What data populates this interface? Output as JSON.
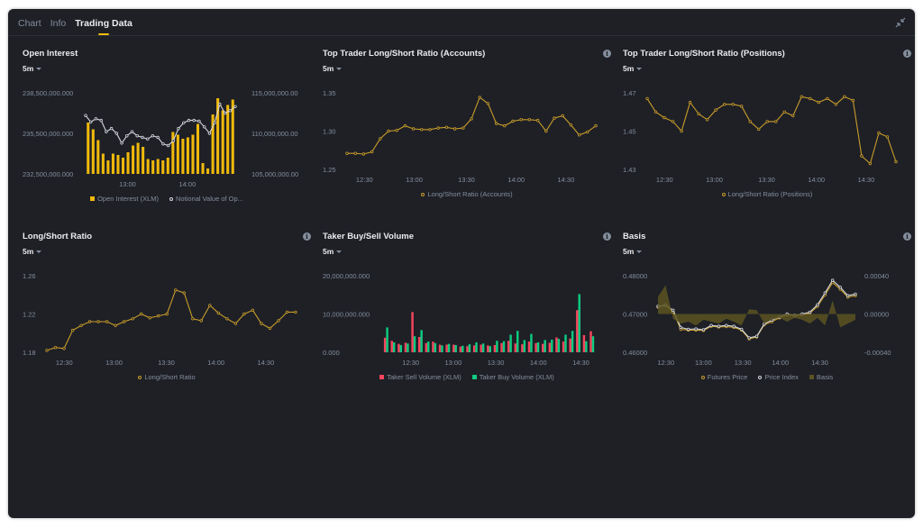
{
  "tabs": [
    "Chart",
    "Info",
    "Trading Data"
  ],
  "active_tab": "Trading Data",
  "colors": {
    "accent": "#f0b90b",
    "line_gold": "#c99c29",
    "line_white": "#d5d8de",
    "sell_red": "#f6465d",
    "buy_green": "#0ecb81",
    "basis_fill": "#5c5322",
    "axis_text": "#848e9c"
  },
  "panels": [
    {
      "id": "open-interest",
      "title": "Open Interest",
      "interval": "5m",
      "info": false,
      "chart_data": {
        "type": "bar",
        "title": "Open Interest",
        "x_ticks": [
          "13:00",
          "14:00"
        ],
        "y_ticks_left": [
          "238,500,000.000",
          "235,500,000.000",
          "232,500,000.000"
        ],
        "y_ticks_right": [
          "115,000,000.00",
          "110,000,000.00",
          "105,000,000.00"
        ],
        "ylim_left": [
          232500000,
          238500000
        ],
        "ylim_right": [
          105000000,
          115000000
        ],
        "series": [
          {
            "name": "Open Interest (XLM)",
            "kind": "bar",
            "axis": "left",
            "values": [
              236300000,
              235800000,
              235000000,
              234000000,
              233500000,
              234000000,
              233900000,
              233700000,
              234100000,
              234600000,
              234800000,
              234500000,
              233600000,
              233500000,
              233600000,
              233500000,
              233700000,
              235600000,
              235400000,
              235100000,
              235200000,
              235400000,
              236200000,
              233300000,
              232900000,
              236900000,
              238100000,
              237200000,
              237600000,
              238000000
            ]
          },
          {
            "name": "Notional Value of Op...",
            "kind": "line",
            "axis": "right",
            "values": [
              112200000,
              111400000,
              111800000,
              111600000,
              110200000,
              110600000,
              110000000,
              108800000,
              109700000,
              110200000,
              109700000,
              109500000,
              109300000,
              109700000,
              109500000,
              108700000,
              108500000,
              109100000,
              110600000,
              111300000,
              111600000,
              111600000,
              111500000,
              110800000,
              110000000,
              111300000,
              113600000,
              112500000,
              112800000,
              113300000
            ]
          }
        ]
      }
    },
    {
      "id": "top-trader-accounts",
      "title": "Top Trader Long/Short Ratio (Accounts)",
      "interval": "5m",
      "info": true,
      "chart_data": {
        "type": "line",
        "title": "Top Trader Long/Short Ratio (Accounts)",
        "x_ticks": [
          "12:30",
          "13:00",
          "13:30",
          "14:00",
          "14:30"
        ],
        "y_ticks": [
          "1.35",
          "1.30",
          "1.25"
        ],
        "ylim": [
          1.25,
          1.35
        ],
        "series": [
          {
            "name": "Long/Short Ratio (Accounts)",
            "values": [
              1.271,
              1.271,
              1.27,
              1.273,
              1.29,
              1.3,
              1.301,
              1.307,
              1.303,
              1.302,
              1.302,
              1.304,
              1.305,
              1.303,
              1.304,
              1.316,
              1.344,
              1.336,
              1.31,
              1.307,
              1.313,
              1.315,
              1.315,
              1.314,
              1.3,
              1.317,
              1.32,
              1.308,
              1.295,
              1.299,
              1.307
            ]
          }
        ]
      }
    },
    {
      "id": "top-trader-positions",
      "title": "Top Trader Long/Short Ratio (Positions)",
      "interval": "5m",
      "info": true,
      "chart_data": {
        "type": "line",
        "title": "Top Trader Long/Short Ratio (Positions)",
        "x_ticks": [
          "12:30",
          "13:00",
          "13:30",
          "14:00",
          "14:30"
        ],
        "y_ticks": [
          "1.47",
          "1.45",
          "1.43"
        ],
        "ylim": [
          1.43,
          1.47
        ],
        "series": [
          {
            "name": "Long/Short Ratio (Positions)",
            "values": [
              1.467,
              1.46,
              1.457,
              1.455,
              1.45,
              1.465,
              1.459,
              1.456,
              1.461,
              1.464,
              1.464,
              1.463,
              1.455,
              1.451,
              1.455,
              1.455,
              1.46,
              1.458,
              1.468,
              1.467,
              1.465,
              1.467,
              1.464,
              1.468,
              1.466,
              1.437,
              1.433,
              1.449,
              1.447,
              1.434
            ]
          }
        ]
      }
    },
    {
      "id": "long-short-ratio",
      "title": "Long/Short Ratio",
      "interval": "5m",
      "info": true,
      "chart_data": {
        "type": "line",
        "title": "Long/Short Ratio",
        "x_ticks": [
          "12:30",
          "13:00",
          "13:30",
          "14:00",
          "14:30"
        ],
        "y_ticks": [
          "1.26",
          "1.22",
          "1.18"
        ],
        "ylim": [
          1.18,
          1.26
        ],
        "series": [
          {
            "name": "Long/Short Ratio",
            "values": [
              1.182,
              1.185,
              1.184,
              1.203,
              1.208,
              1.212,
              1.212,
              1.212,
              1.208,
              1.212,
              1.215,
              1.22,
              1.216,
              1.218,
              1.22,
              1.245,
              1.242,
              1.215,
              1.213,
              1.229,
              1.221,
              1.215,
              1.21,
              1.22,
              1.224,
              1.21,
              1.205,
              1.213,
              1.222,
              1.222
            ]
          }
        ]
      }
    },
    {
      "id": "taker-volume",
      "title": "Taker Buy/Sell Volume",
      "interval": "5m",
      "info": true,
      "chart_data": {
        "type": "bar",
        "title": "Taker Buy/Sell Volume",
        "x_ticks": [
          "12:30",
          "13:00",
          "13:30",
          "14:00",
          "14:30"
        ],
        "y_ticks": [
          "20,000,000.000",
          "10,000,000.000",
          "0.000"
        ],
        "ylim": [
          0,
          20000000
        ],
        "series": [
          {
            "name": "Taker Sell Volume (XLM)",
            "values": [
              3800000,
              3000000,
              2200000,
              2500000,
              10500000,
              4000000,
              2400000,
              2800000,
              2000000,
              2000000,
              2000000,
              1500000,
              1600000,
              1800000,
              2000000,
              1800000,
              1900000,
              2400000,
              3000000,
              2300000,
              2100000,
              2800000,
              2400000,
              2200000,
              2500000,
              3900000,
              2800000,
              3600000,
              11000000,
              4500000,
              5500000
            ]
          },
          {
            "name": "Taker Buy Volume (XLM)",
            "values": [
              6500000,
              2600000,
              1900000,
              2300000,
              4200000,
              5800000,
              2800000,
              2400000,
              1800000,
              2200000,
              1900000,
              1700000,
              2100000,
              2600000,
              2300000,
              1600000,
              3000000,
              2900000,
              4600000,
              5600000,
              3200000,
              4800000,
              2600000,
              3200000,
              3300000,
              3500000,
              4600000,
              5600000,
              15200000,
              2900000,
              4200000
            ]
          }
        ]
      }
    },
    {
      "id": "basis",
      "title": "Basis",
      "interval": "5m",
      "info": true,
      "chart_data": {
        "type": "line",
        "title": "Basis",
        "x_ticks": [
          "12:30",
          "13:00",
          "13:30",
          "14:00",
          "14:30"
        ],
        "y_ticks_left": [
          "0.48000",
          "0.47000",
          "0.46000"
        ],
        "y_ticks_right": [
          "0.00040",
          "0.00000",
          "-0.00040"
        ],
        "ylim_left": [
          0.46,
          0.48
        ],
        "ylim_right": [
          -0.0004,
          0.0004
        ],
        "series": [
          {
            "name": "Futures Price",
            "kind": "line",
            "axis": "left",
            "values": [
              0.4718,
              0.4722,
              0.4705,
              0.466,
              0.4658,
              0.4658,
              0.4657,
              0.4668,
              0.4666,
              0.4667,
              0.4665,
              0.4658,
              0.4635,
              0.464,
              0.4672,
              0.468,
              0.469,
              0.4698,
              0.4695,
              0.4698,
              0.4702,
              0.472,
              0.475,
              0.4782,
              0.4765,
              0.4744,
              0.4748
            ]
          },
          {
            "name": "Price Index",
            "kind": "line",
            "axis": "left",
            "values": [
              0.472,
              0.4724,
              0.471,
              0.4665,
              0.466,
              0.4661,
              0.4659,
              0.467,
              0.4668,
              0.467,
              0.4668,
              0.466,
              0.4638,
              0.4642,
              0.4674,
              0.4684,
              0.4692,
              0.47,
              0.4697,
              0.47,
              0.4705,
              0.4724,
              0.4755,
              0.4788,
              0.477,
              0.4748,
              0.4752
            ]
          },
          {
            "name": "Basis",
            "kind": "area",
            "axis": "right",
            "values": [
              0.00018,
              0.0003,
              -5e-05,
              -0.0001,
              -8e-05,
              -0.00012,
              -6e-05,
              -8e-05,
              -0.0001,
              -5e-05,
              -8e-05,
              -0.00012,
              5e-05,
              4e-05,
              -0.0001,
              -6e-05,
              -4e-05,
              -8e-05,
              -4e-05,
              -6e-05,
              -0.0001,
              -4e-05,
              -0.00012,
              0.00014,
              -0.00014,
              -0.0001,
              -6e-05
            ]
          }
        ]
      }
    }
  ]
}
